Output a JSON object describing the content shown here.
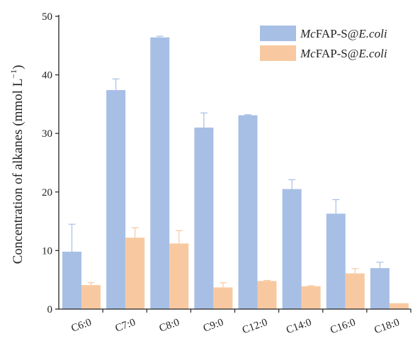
{
  "chart_data": {
    "type": "bar",
    "title": "",
    "xlabel": "",
    "ylabel": "Concentration of alkanes (mmol L",
    "ylabel_sup": "−1",
    "ylabel_close": ")",
    "ylim": [
      0,
      50
    ],
    "yticks": [
      0,
      10,
      20,
      30,
      40,
      50
    ],
    "categories": [
      "C6:0",
      "C7:0",
      "C8:0",
      "C9:0",
      "C12:0",
      "C14:0",
      "C16:0",
      "C18:0"
    ],
    "legend_position": "top-right",
    "grid": false,
    "series": [
      {
        "name_italic": "Mc",
        "name_plain": "FAP-S@",
        "name_italic2": "E.coli",
        "color": "#a7bfe5",
        "values": [
          9.8,
          37.4,
          46.4,
          31.0,
          33.1,
          20.5,
          16.3,
          7.0
        ],
        "errors": [
          4.7,
          1.9,
          0.2,
          2.5,
          0.1,
          1.6,
          2.4,
          1.0
        ]
      },
      {
        "name_italic": "Mc",
        "name_plain": "FAP-S@",
        "name_italic2": "E.coli",
        "color": "#f8c9a0",
        "values": [
          4.1,
          12.2,
          11.2,
          3.7,
          4.8,
          3.9,
          6.1,
          1.0
        ],
        "errors": [
          0.4,
          1.7,
          2.2,
          0.8,
          0.1,
          0.1,
          0.8,
          0.0
        ]
      }
    ]
  }
}
